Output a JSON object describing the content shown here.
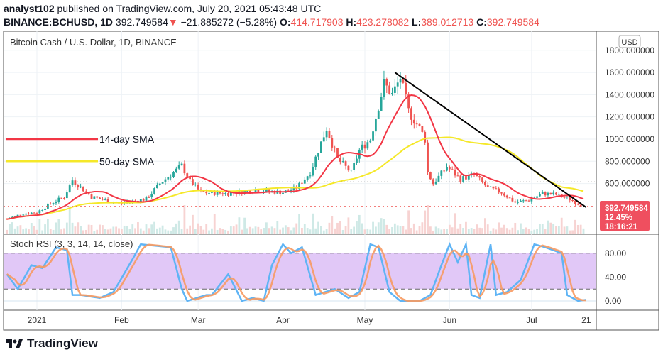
{
  "header": {
    "author": "analyst102",
    "published": "published on TradingView.com, July 20, 2021 05:43:48 UTC",
    "symbol": "BINANCE:BCHUSD, 1D",
    "price": "392.749584",
    "change": "−21.885272 (−5.28%)",
    "o_label": "O:",
    "o": "414.717903",
    "h_label": "H:",
    "h": "423.278082",
    "l_label": "L:",
    "l": "389.012713",
    "c_label": "C:",
    "c": "392.749584"
  },
  "chart_title": "Bitcoin Cash / U.S. Dollar, 1D, BINANCE",
  "currency": "USD",
  "last_tag": {
    "price": "392.749584",
    "pct": "12.45%",
    "countdown": "18:16:21"
  },
  "stoch_title": "Stoch RSI (3, 3, 14, 14, close)",
  "footer_logo": "TradingView",
  "colors": {
    "up": "#26a69a",
    "down": "#ef5350",
    "sma14": "#f23645",
    "sma50": "#f5e829",
    "k": "#5fb4f5",
    "d": "#f79a62",
    "band": "#e1c8f7"
  },
  "chart_data": [
    {
      "type": "candlestick",
      "title": "Bitcoin Cash / U.S. Dollar, 1D, BINANCE",
      "x_unit": "days since 2021-01-01",
      "y_ticks": [
        "1800.000000",
        "1600.000000",
        "1400.000000",
        "1200.000000",
        "1000.000000",
        "800.000000",
        "600.000000"
      ],
      "y_tick_values": [
        1800,
        1600,
        1400,
        1200,
        1000,
        800,
        600
      ],
      "x_ticks": [
        {
          "label": "2021",
          "day": 0
        },
        {
          "label": "Feb",
          "day": 31
        },
        {
          "label": "Mar",
          "day": 59
        },
        {
          "label": "Apr",
          "day": 90
        },
        {
          "label": "May",
          "day": 120
        },
        {
          "label": "Jun",
          "day": 151
        },
        {
          "label": "Jul",
          "day": 181
        },
        {
          "label": "21",
          "day": 201
        }
      ],
      "close_keypoints": [
        [
          -11,
          280
        ],
        [
          -5,
          330
        ],
        [
          0,
          340
        ],
        [
          5,
          420
        ],
        [
          10,
          480
        ],
        [
          13,
          630
        ],
        [
          20,
          480
        ],
        [
          30,
          420
        ],
        [
          40,
          460
        ],
        [
          45,
          600
        ],
        [
          50,
          700
        ],
        [
          53,
          760
        ],
        [
          56,
          620
        ],
        [
          60,
          520
        ],
        [
          70,
          510
        ],
        [
          80,
          540
        ],
        [
          90,
          520
        ],
        [
          95,
          560
        ],
        [
          100,
          700
        ],
        [
          103,
          900
        ],
        [
          106,
          1100
        ],
        [
          110,
          820
        ],
        [
          115,
          700
        ],
        [
          118,
          900
        ],
        [
          122,
          1000
        ],
        [
          127,
          1500
        ],
        [
          130,
          1400
        ],
        [
          133,
          1550
        ],
        [
          136,
          1250
        ],
        [
          140,
          1100
        ],
        [
          142,
          1000
        ],
        [
          143,
          700
        ],
        [
          145,
          600
        ],
        [
          150,
          750
        ],
        [
          155,
          640
        ],
        [
          160,
          680
        ],
        [
          165,
          560
        ],
        [
          170,
          520
        ],
        [
          175,
          430
        ],
        [
          180,
          450
        ],
        [
          185,
          510
        ],
        [
          190,
          500
        ],
        [
          195,
          460
        ],
        [
          200,
          392.75
        ]
      ],
      "last_price": 392.749584,
      "ref_level": 615,
      "annotations": [
        {
          "text": "14-day SMA",
          "series": "sma14",
          "price": 1000
        },
        {
          "text": "50-day SMA",
          "series": "sma50",
          "price": 800
        }
      ],
      "trendline": [
        [
          131,
          1600
        ],
        [
          201,
          385
        ]
      ]
    },
    {
      "type": "line",
      "title": "Stoch RSI (3, 3, 14, 14, close)",
      "y_ticks": [
        "80.00",
        "40.00",
        "0.00"
      ],
      "y_tick_values": [
        80,
        40,
        0
      ],
      "bands": [
        20,
        80
      ],
      "k_keypoints": [
        [
          -11,
          45
        ],
        [
          -7,
          20
        ],
        [
          -2,
          60
        ],
        [
          2,
          55
        ],
        [
          7,
          90
        ],
        [
          11,
          85
        ],
        [
          13,
          10
        ],
        [
          16,
          10
        ],
        [
          23,
          5
        ],
        [
          28,
          15
        ],
        [
          35,
          70
        ],
        [
          38,
          95
        ],
        [
          49,
          90
        ],
        [
          53,
          20
        ],
        [
          55,
          0
        ],
        [
          62,
          10
        ],
        [
          64,
          10
        ],
        [
          70,
          45
        ],
        [
          75,
          0
        ],
        [
          79,
          5
        ],
        [
          83,
          0
        ],
        [
          86,
          60
        ],
        [
          90,
          95
        ],
        [
          93,
          80
        ],
        [
          97,
          90
        ],
        [
          102,
          10
        ],
        [
          109,
          20
        ],
        [
          114,
          5
        ],
        [
          118,
          15
        ],
        [
          122,
          95
        ],
        [
          125,
          90
        ],
        [
          129,
          15
        ],
        [
          133,
          0
        ],
        [
          140,
          0
        ],
        [
          144,
          10
        ],
        [
          148,
          60
        ],
        [
          151,
          95
        ],
        [
          154,
          65
        ],
        [
          157,
          95
        ],
        [
          159,
          10
        ],
        [
          162,
          5
        ],
        [
          166,
          95
        ],
        [
          168,
          10
        ],
        [
          172,
          15
        ],
        [
          177,
          35
        ],
        [
          182,
          95
        ],
        [
          186,
          90
        ],
        [
          192,
          80
        ],
        [
          194,
          10
        ],
        [
          198,
          0
        ],
        [
          201,
          2
        ]
      ]
    }
  ]
}
